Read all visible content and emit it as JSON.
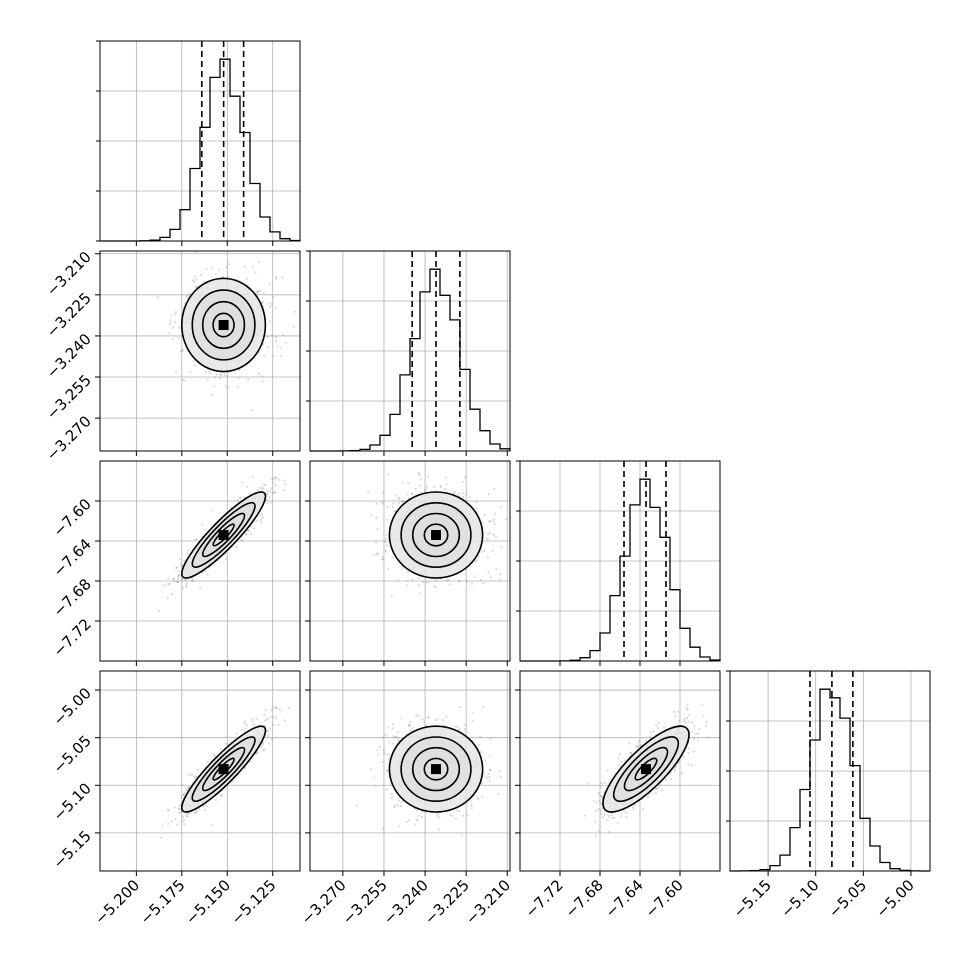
{
  "chart_data": {
    "type": "corner",
    "params": [
      {
        "mean": -5.152,
        "sd": 0.0115,
        "range": [
          -5.22,
          -5.11
        ],
        "ticks": [
          -5.2,
          -5.175,
          -5.15,
          -5.125
        ],
        "tick_labels": [
          "−5.200",
          "−5.175",
          "−5.150",
          "−5.125"
        ],
        "quantiles": [
          -5.164,
          -5.152,
          -5.141
        ]
      },
      {
        "mean": -3.236,
        "sd": 0.0085,
        "range": [
          -3.282,
          -3.209
        ],
        "ticks": [
          -3.27,
          -3.255,
          -3.24,
          -3.225,
          -3.21
        ],
        "tick_labels": [
          "−3.270",
          "−3.255",
          "−3.240",
          "−3.225",
          "−3.210"
        ],
        "quantiles": [
          -3.2447,
          -3.236,
          -3.2273
        ]
      },
      {
        "mean": -7.634,
        "sd": 0.0215,
        "range": [
          -7.76,
          -7.56
        ],
        "ticks": [
          -7.72,
          -7.68,
          -7.64,
          -7.6
        ],
        "tick_labels": [
          "−7.72",
          "−7.68",
          "−7.64",
          "−7.60"
        ],
        "quantiles": [
          -7.656,
          -7.634,
          -7.614
        ]
      },
      {
        "mean": -5.083,
        "sd": 0.0225,
        "range": [
          -5.19,
          -4.98
        ],
        "ticks": [
          -5.15,
          -5.1,
          -5.05,
          -5.0
        ],
        "tick_labels": [
          "−5.15",
          "−5.10",
          "−5.05",
          "−5.00"
        ],
        "quantiles": [
          -5.106,
          -5.083,
          -5.061
        ]
      }
    ],
    "correlations": [
      [
        1.0,
        0.0,
        0.9,
        0.9
      ],
      [
        0.0,
        1.0,
        0.0,
        0.0
      ],
      [
        0.9,
        0.0,
        1.0,
        0.8
      ],
      [
        0.9,
        0.0,
        0.8,
        1.0
      ]
    ],
    "quantile_levels": [
      0.16,
      0.5,
      0.84
    ],
    "contour_levels": [
      0.118,
      0.393,
      0.675,
      0.865
    ],
    "histogram_bins": 20,
    "grid": true,
    "colors": {
      "line": "#000000",
      "points": "#7a7a7a",
      "grid": "#b0b0b0",
      "background": "#ffffff"
    }
  }
}
